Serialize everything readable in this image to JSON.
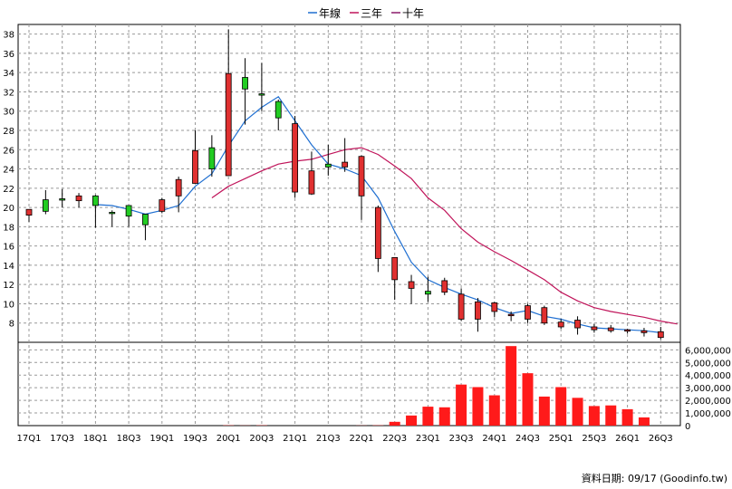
{
  "legend": [
    {
      "label": "年線",
      "color": "#1f6fd1"
    },
    {
      "label": "三年",
      "color": "#c0145a"
    },
    {
      "label": "十年",
      "color": "#8b1a6b"
    }
  ],
  "credit": "資料日期: 09/17  (Goodinfo.tw)",
  "chart_data": {
    "type": "candlestick",
    "price_axis": {
      "min": 6,
      "max": 39,
      "ticks": [
        8,
        10,
        12,
        14,
        16,
        18,
        20,
        22,
        24,
        26,
        28,
        30,
        32,
        34,
        36,
        38
      ]
    },
    "volume_axis": {
      "min": 0,
      "max": 6600000,
      "ticks": [
        "0",
        "1,000,000",
        "2,000,000",
        "3,000,000",
        "4,000,000",
        "5,000,000",
        "6,000,000"
      ],
      "tick_values": [
        0,
        1000000,
        2000000,
        3000000,
        4000000,
        5000000,
        6000000
      ]
    },
    "x_tick_labels": [
      "17Q1",
      "17Q3",
      "18Q1",
      "18Q3",
      "19Q1",
      "19Q3",
      "20Q1",
      "20Q3",
      "21Q1",
      "21Q3",
      "22Q1",
      "22Q3",
      "23Q1",
      "23Q3",
      "24Q1",
      "24Q3",
      "25Q1",
      "25Q3",
      "26Q1",
      "26Q3"
    ],
    "colors": {
      "up": "#22cc22",
      "down": "#e03030",
      "volume": "#ff1a1a",
      "annual": "#1f6fd1",
      "three_year": "#c0145a"
    },
    "candles": [
      [
        19.8,
        19.8,
        18.5,
        19.2
      ],
      [
        19.6,
        21.8,
        19.3,
        20.8
      ],
      [
        20.9,
        21.9,
        20.0,
        20.9
      ],
      [
        21.2,
        21.5,
        20.0,
        20.7
      ],
      [
        20.2,
        21.3,
        17.9,
        21.2
      ],
      [
        19.5,
        19.7,
        18.0,
        19.5
      ],
      [
        19.1,
        20.2,
        18.0,
        20.2
      ],
      [
        18.2,
        19.3,
        16.6,
        19.3
      ],
      [
        20.8,
        21.0,
        19.4,
        19.6
      ],
      [
        22.9,
        23.2,
        19.5,
        21.2
      ],
      [
        25.9,
        28.0,
        22.5,
        22.5
      ],
      [
        24.0,
        27.5,
        23.2,
        26.2
      ],
      [
        33.9,
        38.5,
        23.5,
        23.3
      ],
      [
        32.3,
        35.5,
        28.6,
        33.5
      ],
      [
        31.8,
        35.0,
        30.0,
        31.8
      ],
      [
        29.3,
        31.2,
        28.0,
        31.0
      ],
      [
        28.7,
        29.5,
        21.0,
        21.6
      ],
      [
        23.8,
        25.8,
        21.3,
        21.4
      ],
      [
        24.2,
        26.5,
        23.3,
        24.5
      ],
      [
        24.7,
        27.2,
        23.7,
        24.2
      ],
      [
        25.3,
        25.4,
        18.7,
        21.2
      ],
      [
        20.0,
        20.2,
        13.3,
        14.7
      ],
      [
        14.8,
        14.8,
        10.4,
        12.5
      ],
      [
        12.3,
        13.0,
        10.0,
        11.6
      ],
      [
        11.0,
        12.8,
        10.2,
        11.3
      ],
      [
        12.4,
        12.7,
        10.9,
        11.2
      ],
      [
        11.0,
        11.6,
        8.2,
        8.4
      ],
      [
        10.2,
        10.6,
        7.1,
        8.4
      ],
      [
        10.1,
        10.2,
        8.6,
        9.2
      ],
      [
        8.9,
        9.2,
        8.2,
        8.8
      ],
      [
        9.8,
        10.0,
        8.0,
        8.4
      ],
      [
        9.6,
        9.8,
        7.8,
        8.0
      ],
      [
        8.1,
        8.4,
        7.4,
        7.6
      ],
      [
        8.3,
        8.7,
        6.8,
        7.5
      ],
      [
        7.6,
        7.9,
        7.0,
        7.3
      ],
      [
        7.5,
        7.8,
        7.0,
        7.2
      ],
      [
        7.3,
        7.4,
        6.9,
        7.2
      ],
      [
        7.2,
        7.5,
        6.6,
        7.0
      ],
      [
        7.1,
        7.6,
        6.3,
        6.5
      ]
    ],
    "volumes": [
      0,
      0,
      0,
      0,
      0,
      0,
      0,
      0,
      0,
      0,
      0,
      0,
      20000,
      10000,
      20000,
      0,
      0,
      0,
      0,
      0,
      10000,
      20000,
      300000,
      800000,
      1500000,
      1450000,
      3250000,
      3050000,
      2400000,
      6300000,
      4150000,
      2300000,
      3050000,
      2200000,
      1550000,
      1600000,
      1300000,
      650000,
      0
    ],
    "annual_line": [
      [
        4,
        20.3
      ],
      [
        5,
        20.2
      ],
      [
        6,
        19.8
      ],
      [
        7,
        19.3
      ],
      [
        8,
        19.7
      ],
      [
        9,
        20.2
      ],
      [
        10,
        22.2
      ],
      [
        11,
        23.5
      ],
      [
        12,
        26.4
      ],
      [
        13,
        29.0
      ],
      [
        14,
        30.4
      ],
      [
        15,
        31.5
      ],
      [
        16,
        29.0
      ],
      [
        17,
        26.5
      ],
      [
        18,
        24.5
      ],
      [
        19,
        24.0
      ],
      [
        20,
        23.3
      ],
      [
        21,
        21.0
      ],
      [
        22,
        17.5
      ],
      [
        23,
        14.3
      ],
      [
        24,
        12.5
      ],
      [
        25,
        11.7
      ],
      [
        26,
        11.0
      ],
      [
        27,
        10.4
      ],
      [
        28,
        9.6
      ],
      [
        29,
        9.0
      ],
      [
        30,
        9.3
      ],
      [
        31,
        8.7
      ],
      [
        32,
        8.4
      ],
      [
        33,
        7.9
      ],
      [
        34,
        7.5
      ],
      [
        35,
        7.4
      ],
      [
        36,
        7.3
      ],
      [
        37,
        7.2
      ],
      [
        38,
        7.0
      ]
    ],
    "three_year_line": [
      [
        11,
        21.0
      ],
      [
        12,
        22.2
      ],
      [
        13,
        23.0
      ],
      [
        14,
        23.8
      ],
      [
        15,
        24.5
      ],
      [
        16,
        24.8
      ],
      [
        17,
        25.0
      ],
      [
        18,
        25.5
      ],
      [
        19,
        26.0
      ],
      [
        20,
        26.2
      ],
      [
        21,
        25.5
      ],
      [
        22,
        24.3
      ],
      [
        23,
        23.0
      ],
      [
        24,
        21.0
      ],
      [
        25,
        19.7
      ],
      [
        26,
        17.8
      ],
      [
        27,
        16.4
      ],
      [
        28,
        15.4
      ],
      [
        29,
        14.5
      ],
      [
        30,
        13.5
      ],
      [
        31,
        12.5
      ],
      [
        32,
        11.2
      ],
      [
        33,
        10.3
      ],
      [
        34,
        9.6
      ],
      [
        35,
        9.2
      ],
      [
        36,
        8.9
      ],
      [
        37,
        8.6
      ],
      [
        38,
        8.2
      ],
      [
        39,
        7.9
      ]
    ]
  }
}
